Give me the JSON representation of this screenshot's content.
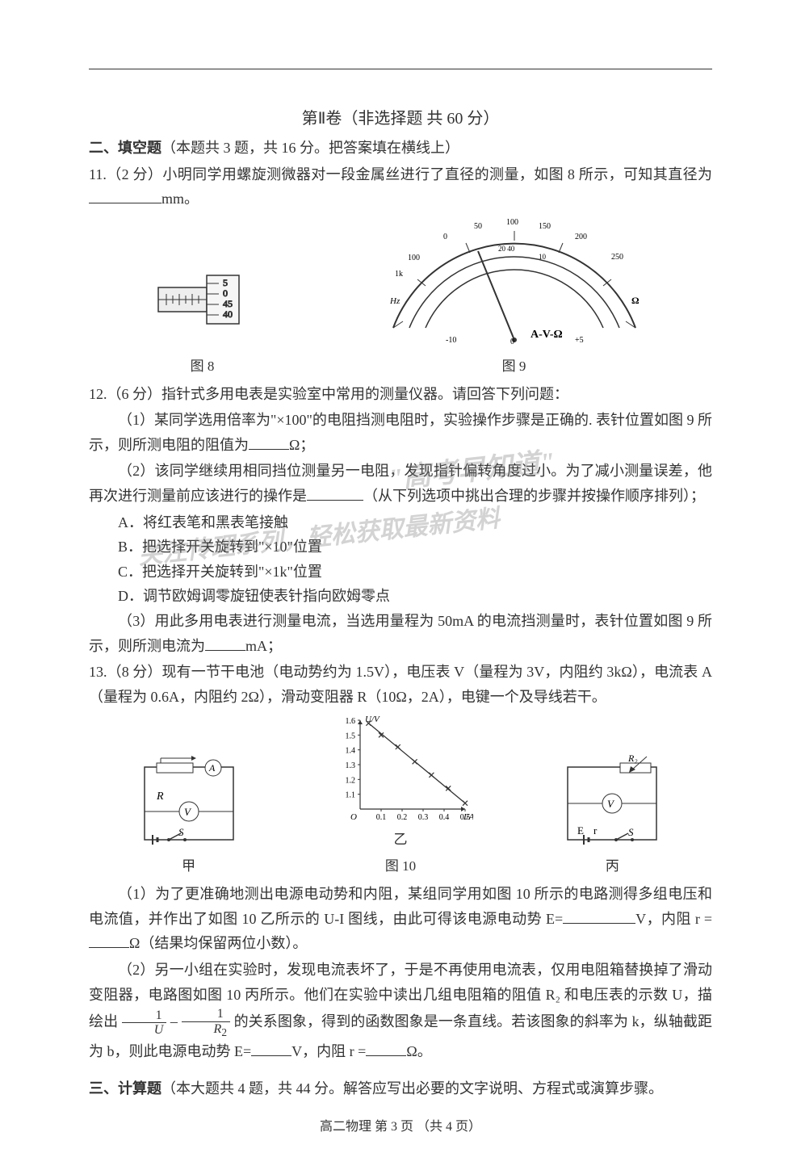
{
  "partTitle": "第Ⅱ卷（非选择题  共 60 分）",
  "section2": {
    "header": "二、填空题",
    "desc": "（本题共 3 题，共 16 分。把答案填在横线上）"
  },
  "q11": {
    "text": "11.（2 分）小明同学用螺旋测微器对一段金属丝进行了直径的测量，如图 8 所示，可知其直径为",
    "unit": "mm。"
  },
  "fig8": {
    "label": "图 8",
    "scale": [
      "5",
      "0",
      "45",
      "40"
    ]
  },
  "fig9": {
    "label": "图 9",
    "avw": "A-V-Ω",
    "top_scale": {
      "range": "0-250",
      "ticks": [
        0,
        50,
        100,
        150,
        200,
        250
      ]
    },
    "mid_scale": {
      "left_marks": [
        "1k",
        "100"
      ],
      "right_marks": [
        "0"
      ]
    },
    "hz_left": "Hz",
    "volts": [
      "-10",
      "0",
      "+5"
    ],
    "ohm": "Ω"
  },
  "q12": {
    "header": "12.（6 分）指针式多用电表是实验室中常用的测量仪器。请回答下列问题：",
    "p1a": "（1）某同学选用倍率为",
    "p1b": "\"×100\"",
    "p1c": "的电阻挡测电阻时，实验操作步骤是正确的. 表针位置如图 9 所示，则所测电阻的阻值为",
    "p1unit": "Ω；",
    "p2": "（2）该同学继续用相同挡位测量另一电阻，发现指针偏转角度过小。为了减小测量误差，他再次进行测量前应该进行的操作是",
    "p2tail": "（从下列选项中挑出合理的步骤并按操作顺序排列）；",
    "optA": "A．将红表笔和黑表笔接触",
    "optB": "B．把选择开关旋转到\"×10\"位置",
    "optC": "C．把选择开关旋转到\"×1k\"位置",
    "optD": "D．调节欧姆调零旋钮使表针指向欧姆零点",
    "p3": "（3）用此多用电表进行测量电流，当选用量程为 50mA 的电流挡测量时，表针位置如图 9 所示，则所测电流为",
    "p3unit": "mA；"
  },
  "q13": {
    "header": "13.（8 分）现有一节干电池（电动势约为 1.5V），电压表 V（量程为 3V，内阻约 3kΩ），电流表 A（量程为 0.6A，内阻约 2Ω），滑动变阻器 R（10Ω，2A），电键一个及导线若干。",
    "figJia": "甲",
    "figYi": "乙",
    "figBing": "丙",
    "fig10": "图 10",
    "chart": {
      "type": "line-scatter",
      "xlabel": "I/A",
      "ylabel": "U/V",
      "xlim": [
        0,
        0.5
      ],
      "ylim": [
        1.0,
        1.6
      ],
      "xticks": [
        "0.1",
        "0.2",
        "0.3",
        "0.4",
        "0.5"
      ],
      "yticks": [
        "1.1",
        "1.2",
        "1.3",
        "1.4",
        "1.5",
        "1.6"
      ],
      "points": [
        [
          0.04,
          1.58
        ],
        [
          0.1,
          1.5
        ],
        [
          0.18,
          1.42
        ],
        [
          0.26,
          1.32
        ],
        [
          0.34,
          1.23
        ],
        [
          0.42,
          1.14
        ],
        [
          0.5,
          1.04
        ]
      ],
      "line_color": "#333333",
      "marker": "x"
    },
    "p1": "（1）为了更准确地测出电源电动势和内阻，某组同学用如图 10 所示的电路测得多组电压和电流值，并作出了如图 10 乙所示的 U-I 图线，由此可得该电源电动势 E=",
    "p1v": "V，内阻 r =",
    "p1unit": "Ω（结果均保留两位小数）。",
    "p2": "（2）另一小组在实验时，发现电流表坏了，于是不再使用电流表，仅用电阻箱替换掉了滑动变阻器，电路图如图 10 丙所示。他们在实验中读出几组电阻箱的阻值 R₂ 和电压表的示数 U，描绘出",
    "p2mid": "的关系图象，得到的函数图象是一条直线。若该图象的斜率为 k，纵轴截距为 b，则此电源电动势 E=",
    "p2v": "V，内阻 r =",
    "p2unit": "Ω。"
  },
  "section3": {
    "header": "三、计算题",
    "desc": "（本大题共 4 题，共 44 分。解答应写出必要的文字说明、方程式或演算步骤。"
  },
  "footer": "高二物理    第 3 页  （共 4 页）",
  "watermark1": "\"高考早知道\"",
  "watermark2": "关注传理系列，轻松获取最新资料"
}
